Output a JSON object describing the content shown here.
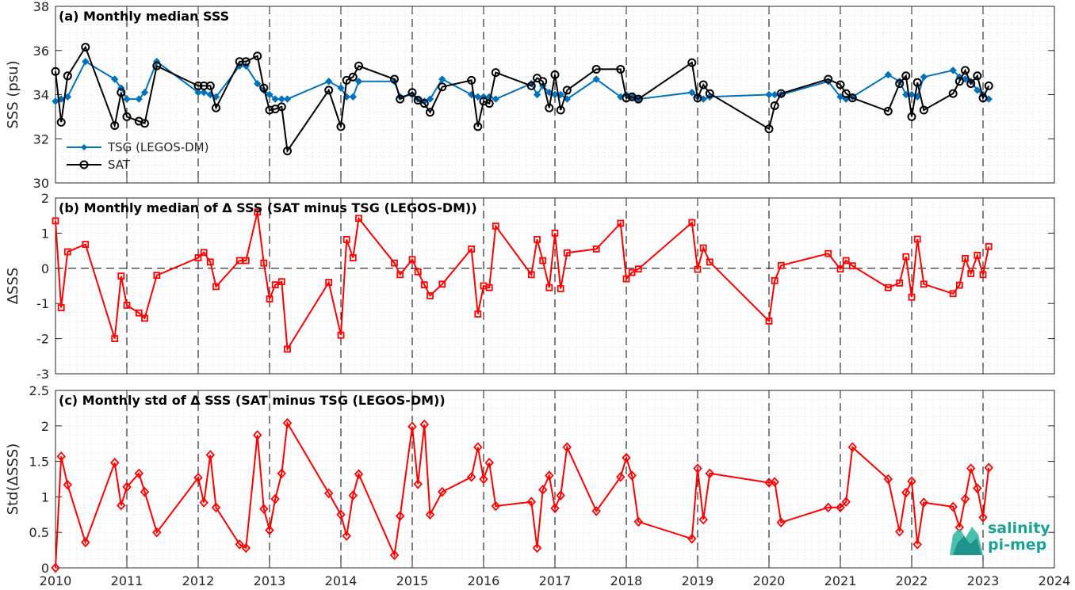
{
  "chart_data": [
    {
      "type": "line",
      "title": "(a) Monthly median SSS",
      "xlabel": "",
      "ylabel": "SSS (psu)",
      "xlim": [
        2010,
        2024
      ],
      "ylim": [
        30,
        38
      ],
      "yticks": [
        30,
        32,
        34,
        36,
        38
      ],
      "grid": "on",
      "legend_location": "bottom-left",
      "series": [
        {
          "name": "TSG (LEGOS-DM)",
          "color": "#0072bd",
          "marker": "diamond-filled",
          "x": [
            2010.0,
            2010.08,
            2010.17,
            2010.42,
            2010.83,
            2010.92,
            2011.0,
            2011.17,
            2011.25,
            2011.42,
            2012.0,
            2012.08,
            2012.17,
            2012.25,
            2012.58,
            2012.67,
            2012.83,
            2012.92,
            2013.0,
            2013.08,
            2013.17,
            2013.25,
            2013.83,
            2014.0,
            2014.08,
            2014.17,
            2014.25,
            2014.75,
            2014.83,
            2015.0,
            2015.08,
            2015.17,
            2015.25,
            2015.42,
            2015.83,
            2015.92,
            2016.0,
            2016.08,
            2016.17,
            2016.67,
            2016.75,
            2016.83,
            2016.92,
            2017.0,
            2017.08,
            2017.17,
            2017.58,
            2017.92,
            2018.0,
            2018.08,
            2018.17,
            2018.92,
            2019.0,
            2019.08,
            2019.17,
            2020.0,
            2020.08,
            2020.17,
            2020.83,
            2021.0,
            2021.08,
            2021.17,
            2021.67,
            2021.83,
            2021.92,
            2022.0,
            2022.08,
            2022.17,
            2022.58,
            2022.67,
            2022.75,
            2022.83,
            2022.92,
            2023.0,
            2023.08
          ],
          "values": [
            33.7,
            33.8,
            33.9,
            35.5,
            34.7,
            34.3,
            33.8,
            33.8,
            34.1,
            35.5,
            34.1,
            34.1,
            34.0,
            33.9,
            35.3,
            35.3,
            34.5,
            34.2,
            34.0,
            33.8,
            33.8,
            33.8,
            34.6,
            34.3,
            33.9,
            33.9,
            34.6,
            34.6,
            33.9,
            34.0,
            33.8,
            33.7,
            33.8,
            34.7,
            34.0,
            33.9,
            33.9,
            33.9,
            33.8,
            34.5,
            34.0,
            34.4,
            34.1,
            34.0,
            34.0,
            33.8,
            34.7,
            33.9,
            34.0,
            33.9,
            33.8,
            34.1,
            33.9,
            33.8,
            33.9,
            34.0,
            34.0,
            34.0,
            34.6,
            33.9,
            33.8,
            33.9,
            34.9,
            34.6,
            34.0,
            34.0,
            33.9,
            34.8,
            35.1,
            34.8,
            34.7,
            34.6,
            34.2,
            34.0,
            33.8
          ]
        },
        {
          "name": "SAT",
          "color": "#000000",
          "marker": "circle-open",
          "x": [
            2010.0,
            2010.08,
            2010.17,
            2010.42,
            2010.83,
            2010.92,
            2011.0,
            2011.17,
            2011.25,
            2011.42,
            2012.0,
            2012.08,
            2012.17,
            2012.25,
            2012.58,
            2012.67,
            2012.83,
            2012.92,
            2013.0,
            2013.08,
            2013.17,
            2013.25,
            2013.83,
            2014.0,
            2014.08,
            2014.17,
            2014.25,
            2014.75,
            2014.83,
            2015.0,
            2015.08,
            2015.17,
            2015.25,
            2015.42,
            2015.83,
            2015.92,
            2016.0,
            2016.08,
            2016.17,
            2016.67,
            2016.75,
            2016.83,
            2016.92,
            2017.0,
            2017.08,
            2017.17,
            2017.58,
            2017.92,
            2018.0,
            2018.08,
            2018.17,
            2018.92,
            2019.0,
            2019.08,
            2019.17,
            2020.0,
            2020.08,
            2020.17,
            2020.83,
            2021.0,
            2021.08,
            2021.17,
            2021.67,
            2021.83,
            2021.92,
            2022.0,
            2022.08,
            2022.17,
            2022.58,
            2022.67,
            2022.75,
            2022.83,
            2022.92,
            2023.0,
            2023.08
          ],
          "values": [
            35.05,
            32.75,
            34.85,
            36.15,
            32.6,
            34.1,
            33.0,
            32.8,
            32.7,
            35.3,
            34.4,
            34.4,
            34.4,
            33.4,
            35.5,
            35.5,
            35.75,
            34.3,
            33.3,
            33.35,
            33.45,
            31.45,
            34.2,
            32.55,
            34.65,
            34.8,
            35.3,
            34.7,
            33.8,
            34.1,
            33.75,
            33.6,
            33.2,
            34.35,
            34.65,
            32.55,
            33.7,
            33.6,
            35.0,
            34.4,
            34.75,
            34.6,
            33.4,
            34.9,
            33.3,
            34.2,
            35.15,
            35.15,
            33.85,
            33.9,
            33.8,
            35.45,
            33.85,
            34.45,
            34.05,
            32.45,
            33.5,
            34.05,
            34.7,
            34.45,
            34.05,
            33.85,
            33.25,
            34.5,
            34.85,
            33.0,
            34.55,
            33.3,
            34.05,
            34.6,
            35.1,
            34.5,
            34.85,
            33.85,
            34.4
          ]
        }
      ]
    },
    {
      "type": "line",
      "title": "(b) Monthly median of Δ SSS (SAT minus TSG (LEGOS-DM))",
      "xlabel": "",
      "ylabel": "ΔSSS",
      "xlim": [
        2010,
        2024
      ],
      "ylim": [
        -3,
        2
      ],
      "yticks": [
        -3,
        -2,
        -1,
        0,
        1,
        2
      ],
      "grid": "on",
      "zero_line": "dashed",
      "series": [
        {
          "name": "",
          "color": "#ff0000",
          "marker": "square-open",
          "x": [
            2010.0,
            2010.08,
            2010.17,
            2010.42,
            2010.83,
            2010.92,
            2011.0,
            2011.17,
            2011.25,
            2011.42,
            2012.0,
            2012.08,
            2012.17,
            2012.25,
            2012.58,
            2012.67,
            2012.83,
            2012.92,
            2013.0,
            2013.08,
            2013.17,
            2013.25,
            2013.83,
            2014.0,
            2014.08,
            2014.17,
            2014.25,
            2014.75,
            2014.83,
            2015.0,
            2015.08,
            2015.17,
            2015.25,
            2015.42,
            2015.83,
            2015.92,
            2016.0,
            2016.08,
            2016.17,
            2016.67,
            2016.75,
            2016.83,
            2016.92,
            2017.0,
            2017.08,
            2017.17,
            2017.58,
            2017.92,
            2018.0,
            2018.08,
            2018.17,
            2018.92,
            2019.0,
            2019.08,
            2019.17,
            2020.0,
            2020.08,
            2020.17,
            2020.83,
            2021.0,
            2021.08,
            2021.17,
            2021.67,
            2021.83,
            2021.92,
            2022.0,
            2022.08,
            2022.17,
            2022.58,
            2022.67,
            2022.75,
            2022.83,
            2022.92,
            2023.0,
            2023.08
          ],
          "values": [
            1.35,
            -1.12,
            0.47,
            0.68,
            -2.0,
            -0.22,
            -1.05,
            -1.27,
            -1.42,
            -0.2,
            0.3,
            0.45,
            0.18,
            -0.52,
            0.22,
            0.22,
            1.6,
            0.15,
            -0.87,
            -0.47,
            -0.38,
            -2.3,
            -0.4,
            -1.9,
            0.82,
            0.3,
            1.42,
            0.15,
            -0.18,
            0.25,
            -0.1,
            -0.47,
            -0.78,
            -0.45,
            0.55,
            -1.3,
            -0.5,
            -0.55,
            1.2,
            -0.18,
            0.82,
            0.22,
            -0.55,
            1.0,
            -0.58,
            0.44,
            0.55,
            1.28,
            -0.3,
            -0.12,
            -0.02,
            1.3,
            -0.03,
            0.58,
            0.18,
            -1.5,
            -0.35,
            0.08,
            0.42,
            -0.02,
            0.22,
            0.07,
            -0.55,
            -0.42,
            0.33,
            -0.82,
            0.83,
            -0.45,
            -0.72,
            -0.48,
            0.28,
            -0.15,
            0.37,
            -0.18,
            0.62
          ]
        }
      ]
    },
    {
      "type": "line",
      "title": "(c) Monthly std of Δ SSS (SAT minus TSG (LEGOS-DM))",
      "xlabel": "",
      "ylabel": "Std(ΔSSS)",
      "xlim": [
        2010,
        2024
      ],
      "ylim": [
        0,
        2.5
      ],
      "yticks": [
        0,
        0.5,
        1,
        1.5,
        2,
        2.5
      ],
      "xticks": [
        2010,
        2011,
        2012,
        2013,
        2014,
        2015,
        2016,
        2017,
        2018,
        2019,
        2020,
        2021,
        2022,
        2023,
        2024
      ],
      "grid": "on",
      "series": [
        {
          "name": "",
          "color": "#ff0000",
          "marker": "diamond-open",
          "x": [
            2010.0,
            2010.08,
            2010.17,
            2010.42,
            2010.83,
            2010.92,
            2011.0,
            2011.17,
            2011.25,
            2011.42,
            2012.0,
            2012.08,
            2012.17,
            2012.25,
            2012.58,
            2012.67,
            2012.83,
            2012.92,
            2013.0,
            2013.08,
            2013.17,
            2013.25,
            2013.83,
            2014.0,
            2014.08,
            2014.17,
            2014.25,
            2014.75,
            2014.83,
            2015.0,
            2015.08,
            2015.17,
            2015.25,
            2015.42,
            2015.83,
            2015.92,
            2016.0,
            2016.08,
            2016.17,
            2016.67,
            2016.75,
            2016.83,
            2016.92,
            2017.0,
            2017.08,
            2017.17,
            2017.58,
            2017.92,
            2018.0,
            2018.08,
            2018.17,
            2018.92,
            2019.0,
            2019.08,
            2019.17,
            2020.0,
            2020.08,
            2020.17,
            2020.83,
            2021.0,
            2021.08,
            2021.17,
            2021.67,
            2021.83,
            2021.92,
            2022.0,
            2022.08,
            2022.17,
            2022.58,
            2022.67,
            2022.75,
            2022.83,
            2022.92,
            2023.0,
            2023.08
          ],
          "values": [
            0.0,
            1.57,
            1.17,
            0.36,
            1.48,
            0.88,
            1.14,
            1.33,
            1.07,
            0.5,
            1.27,
            0.92,
            1.59,
            0.85,
            0.33,
            0.28,
            1.87,
            0.83,
            0.53,
            0.97,
            1.33,
            2.04,
            1.05,
            0.75,
            0.45,
            1.02,
            1.32,
            0.18,
            0.73,
            1.99,
            1.18,
            2.02,
            0.75,
            1.07,
            1.28,
            1.7,
            1.25,
            1.48,
            0.87,
            0.93,
            0.28,
            1.1,
            1.3,
            0.84,
            1.02,
            1.7,
            0.8,
            1.28,
            1.55,
            1.3,
            0.65,
            0.41,
            1.4,
            0.68,
            1.33,
            1.2,
            1.21,
            0.64,
            0.85,
            0.85,
            0.93,
            1.7,
            1.25,
            0.51,
            1.06,
            1.22,
            0.33,
            0.92,
            0.86,
            0.57,
            0.97,
            1.4,
            1.12,
            0.71,
            1.41
          ]
        }
      ]
    }
  ],
  "logo": {
    "line1": "salinity",
    "line2": "pi-mep"
  }
}
